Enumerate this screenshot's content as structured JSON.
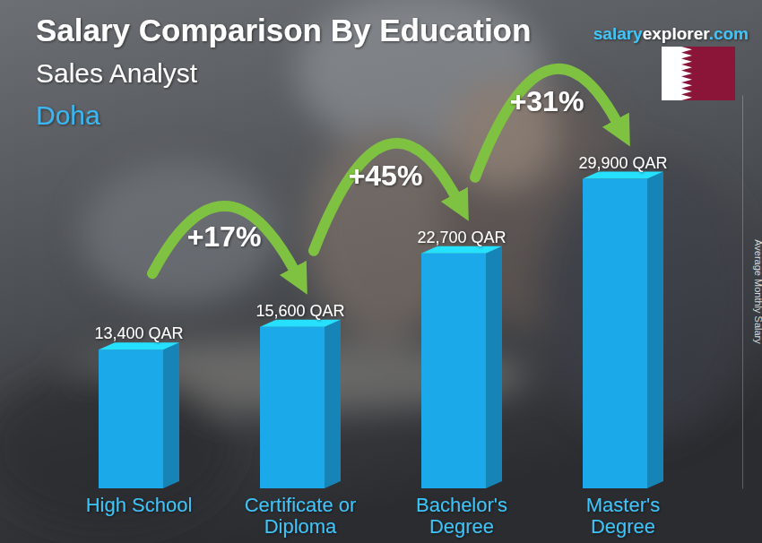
{
  "chart_data": {
    "type": "bar",
    "title": "Salary Comparison By Education",
    "subtitle": "Sales Analyst",
    "location": "Doha",
    "source": "salaryexplorer.com",
    "y_label": "Average Monthly Salary",
    "categories": [
      "High School",
      "Certificate or Diploma",
      "Bachelor's Degree",
      "Master's Degree"
    ],
    "values": [
      13400,
      15600,
      22700,
      29900
    ],
    "value_labels": [
      "13,400 QAR",
      "15,600 QAR",
      "22,700 QAR",
      "29,900 QAR"
    ],
    "annotations": [
      "+17%",
      "+45%",
      "+31%"
    ],
    "color": "#1ca9ea",
    "ylim": [
      0,
      38000
    ],
    "data_labels": true,
    "tick_labels": "x",
    "grid": false
  }
}
